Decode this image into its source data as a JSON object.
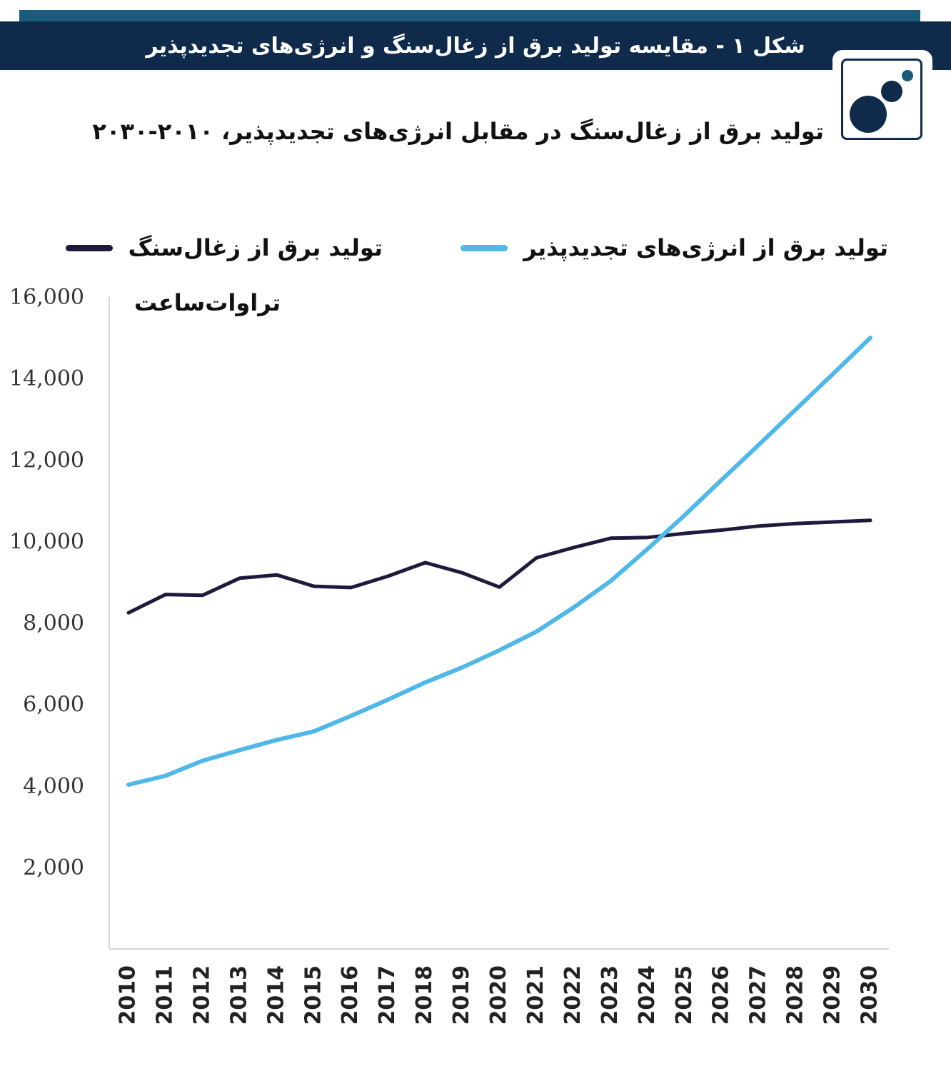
{
  "header": {
    "banner_title": "شکل ۱ - مقایسه تولید برق از زغال‌سنگ و انرژی‌های تجدیدپذیر",
    "logo": "circles-logo-icon"
  },
  "colors": {
    "banner": "#0f2a4a",
    "accent_strip": "#1b5b7b",
    "coal": "#1e1a3c",
    "renewables": "#4fb8e8"
  },
  "chart_data": {
    "type": "line",
    "title": "تولید برق از زغال‌سنگ در مقابل انرژی‌های تجدیدپذیر، ۲۰۱۰-۲۰۳۰",
    "ylabel": "تراوات‌ساعت",
    "xlabel": "",
    "ylim": [
      0,
      16000
    ],
    "yticks": [
      "2,000",
      "4,000",
      "6,000",
      "8,000",
      "10,000",
      "12,000",
      "14,000",
      "16,000"
    ],
    "grid": false,
    "legend_position": "top",
    "categories": [
      "2010",
      "2011",
      "2012",
      "2013",
      "2014",
      "2015",
      "2016",
      "2017",
      "2018",
      "2019",
      "2020",
      "2021",
      "2022",
      "2023",
      "2024",
      "2025",
      "2026",
      "2027",
      "2028",
      "2029",
      "2030"
    ],
    "series": [
      {
        "name": "تولید برق از زغال‌سنگ",
        "color": "#1e1a3c",
        "values": [
          8250,
          8700,
          8680,
          9100,
          9180,
          8900,
          8870,
          9150,
          9480,
          9230,
          8880,
          9600,
          9850,
          10080,
          10100,
          10200,
          10280,
          10380,
          10440,
          10480,
          10520
        ]
      },
      {
        "name": "تولید برق از انرژی‌های تجدیدپذیر",
        "color": "#4fb8e8",
        "values": [
          4030,
          4250,
          4620,
          4880,
          5130,
          5340,
          5720,
          6120,
          6540,
          6910,
          7330,
          7790,
          8380,
          9030,
          9820,
          10650,
          11520,
          12380,
          13250,
          14120,
          15000
        ]
      }
    ]
  }
}
